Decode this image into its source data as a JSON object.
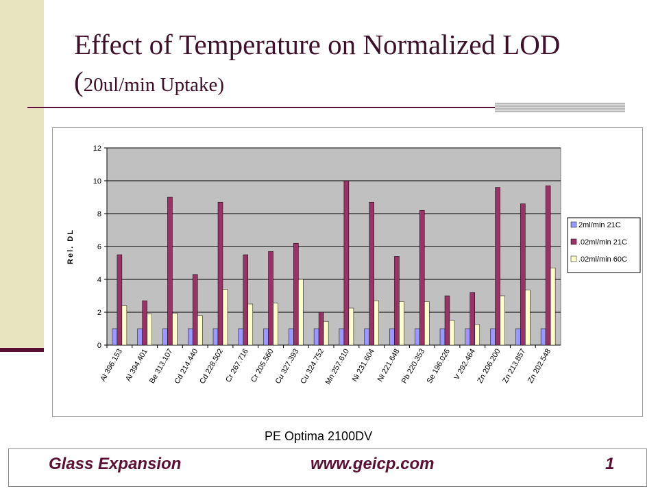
{
  "slide": {
    "title_main": "Effect of Temperature on Normalized LOD (",
    "title_small": "20ul/min Uptake)",
    "source_note": "PE Optima 2100DV",
    "footer_left": "Glass Expansion",
    "footer_center": "www.geicp.com",
    "footer_right": "1"
  },
  "chart_data": {
    "type": "bar",
    "ylabel": "Rel. DL",
    "ylim": [
      0,
      12
    ],
    "yticks": [
      0,
      2,
      4,
      6,
      8,
      10,
      12
    ],
    "grid": true,
    "legend_position": "right",
    "categories": [
      "Al 396.153",
      "Al 394.401",
      "Be 313.107",
      "Cd 214.440",
      "Cd 228.502",
      "Cr 267.716",
      "Cr 205.560",
      "Cu 327.393",
      "Cu 324.752",
      "Mn 257.610",
      "Ni 231.604",
      "Ni 221.648",
      "Pb 220.353",
      "Se 196.026",
      "V 292.464",
      "Zn 206.200",
      "Zn 213.857",
      "Zn 202.548"
    ],
    "series": [
      {
        "name": "2ml/min 21C",
        "color": "#9999ff",
        "values": [
          1,
          1,
          1,
          1,
          1,
          1,
          1,
          1,
          1,
          1,
          1,
          1,
          1,
          1,
          1,
          1,
          1,
          1
        ]
      },
      {
        "name": ".02ml/min 21C",
        "color": "#993366",
        "values": [
          5.5,
          2.7,
          9.0,
          4.3,
          8.7,
          5.5,
          5.7,
          6.2,
          2.0,
          10.0,
          8.7,
          5.4,
          8.2,
          3.0,
          3.2,
          9.6,
          8.6,
          9.7
        ]
      },
      {
        "name": ".02ml/min 60C",
        "color": "#ffffcc",
        "values": [
          2.4,
          1.9,
          1.95,
          1.8,
          3.4,
          2.5,
          2.55,
          4.0,
          1.45,
          2.25,
          2.7,
          2.65,
          2.65,
          1.5,
          1.25,
          3.0,
          3.35,
          4.7
        ]
      }
    ]
  }
}
